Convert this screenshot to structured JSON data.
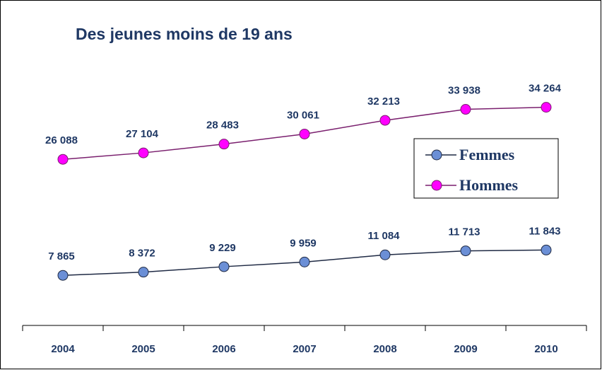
{
  "chart_data": {
    "type": "line",
    "title": "Des jeunes moins de 19 ans",
    "categories": [
      "2004",
      "2005",
      "2006",
      "2007",
      "2008",
      "2009",
      "2010"
    ],
    "series": [
      {
        "name": "Femmes",
        "color": "#6b8fd6",
        "line_color": "#1f2a44",
        "values": [
          7865,
          8372,
          9229,
          9959,
          11084,
          11713,
          11843
        ],
        "value_labels": [
          "7 865",
          "8 372",
          "9 229",
          "9 959",
          "11 084",
          "11 713",
          "11 843"
        ]
      },
      {
        "name": "Hommes",
        "color": "#ff00ff",
        "line_color": "#7a1f6e",
        "values": [
          26088,
          27104,
          28483,
          30061,
          32213,
          33938,
          34264
        ],
        "value_labels": [
          "26 088",
          "27 104",
          "28 483",
          "30 061",
          "32 213",
          "33 938",
          "34 264"
        ]
      }
    ],
    "ylim": [
      0,
      45000
    ],
    "legend": "right"
  }
}
